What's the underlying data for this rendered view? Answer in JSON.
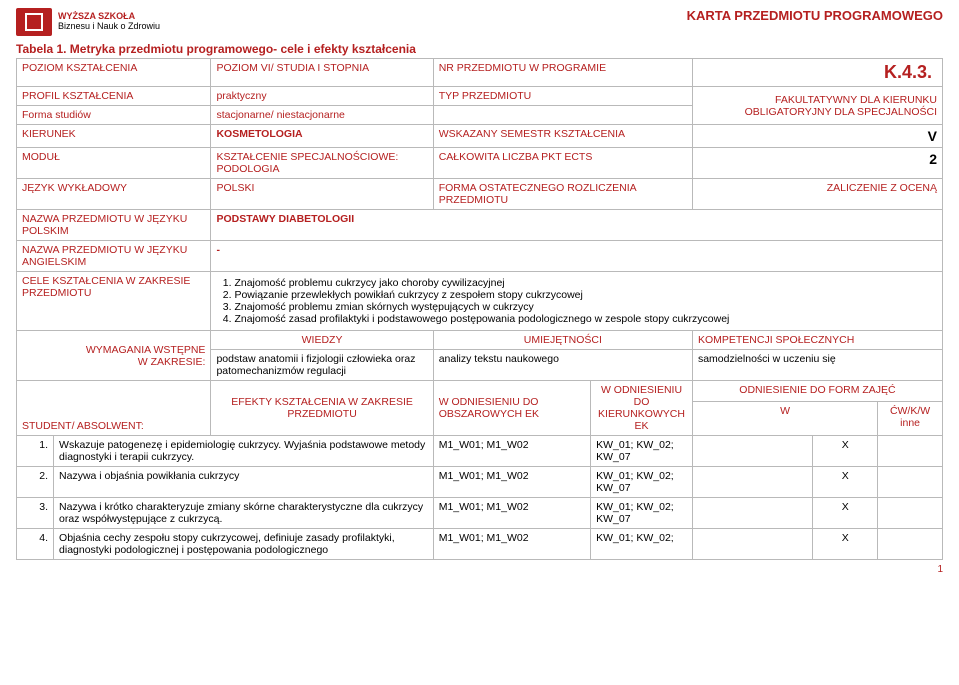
{
  "header": {
    "school_line1": "WYŻSZA SZKOŁA",
    "school_line2": "Biznesu i Nauk o Zdrowiu",
    "doc_title": "KARTA PRZEDMIOTU PROGRAMOWEGO"
  },
  "title": "Tabela 1. Metryka przedmiotu programowego- cele i efekty kształcenia",
  "rows": {
    "poziom_l": "POZIOM KSZTAŁCENIA",
    "poziom_v": "POZIOM VI/ STUDIA I STOPNIA",
    "nr_l": "NR PRZEDMIOTU W PROGRAMIE",
    "nr_v": "K.4.3.",
    "profil_l": "PROFIL KSZTAŁCENIA",
    "profil_v": "praktyczny",
    "typ_l": "TYP PRZEDMIOTU",
    "typ_v1": "FAKULTATYWNY DLA KIERUNKU",
    "typ_v2": "OBLIGATORYJNY DLA SPECJALNOŚCI",
    "forma_l": "Forma studiów",
    "forma_v": "stacjonarne/ niestacjonarne",
    "kier_l": "KIERUNEK",
    "kier_v": "KOSMETOLOGIA",
    "sem_l": "WSKAZANY SEMESTR KSZTAŁCENIA",
    "sem_v": "V",
    "modul_l": "MODUŁ",
    "modul_v": "KSZTAŁCENIE SPECJALNOŚCIOWE: PODOLOGIA",
    "ects_l": "CAŁKOWITA LICZBA PKT ECTS",
    "ects_v": "2",
    "jezyk_l": "JĘZYK WYKŁADOWY",
    "jezyk_v": "POLSKI",
    "forma_roz_l": "FORMA OSTATECZNEGO ROZLICZENIA PRZEDMIOTU",
    "forma_roz_v": "ZALICZENIE Z OCENĄ",
    "nazwa_pl_l": "NAZWA PRZEDMIOTU W JĘZYKU POLSKIM",
    "nazwa_pl_v": "PODSTAWY DIABETOLOGII",
    "nazwa_en_l": "NAZWA PRZEDMIOTU W JĘZYKU ANGIELSKIM",
    "nazwa_en_v": "-",
    "cele_l": "CELE KSZTAŁCENIA W ZAKRESIE PRZEDMIOTU",
    "cele": [
      "Znajomość problemu cukrzycy jako choroby cywilizacyjnej",
      "Powiązanie przewlekłych powikłań cukrzycy z zespołem stopy cukrzycowej",
      "Znajomość problemu zmian skórnych występujących w cukrzycy",
      "Znajomość zasad profilaktyki i podstawowego postępowania podologicznego w zespole stopy cukrzycowej"
    ],
    "wymagania_l1": "WYMAGANIA WSTĘPNE",
    "wymagania_l2": "W ZAKRESIE:",
    "wiedzy_h": "WIEDZY",
    "wiedzy_v": "podstaw anatomii i fizjologii człowieka oraz patomechanizmów regulacji",
    "umiej_h": "UMIEJĘTNOŚCI",
    "umiej_v": "analizy tekstu naukowego",
    "komp_h": "KOMPETENCJI  SPOŁECZNYCH",
    "komp_v": "samodzielności w uczeniu się",
    "student_l": "STUDENT/ ABSOLWENT:",
    "efekty_h": "EFEKTY KSZTAŁCENIA W ZAKRESIE PRZEDMIOTU",
    "obszar_h": "W ODNIESIENIU DO OBSZAROWYCH EK",
    "kierunk_h": "W ODNIESIENIU DO KIERUNKOWYCH EK",
    "formy_h": "ODNIESIENIE DO FORM ZAJĘĆ",
    "col_w": "W",
    "col_cw": "ĆW/K/W  inne"
  },
  "effects": [
    {
      "n": "1.",
      "text": "Wskazuje patogenezę i epidemiologię cukrzycy. Wyjaśnia podstawowe metody diagnostyki i terapii cukrzycy.",
      "obszar": "M1_W01; M1_W02",
      "kier": "KW_01; KW_02; KW_07",
      "w": "X",
      "cw": ""
    },
    {
      "n": "2.",
      "text": "Nazywa i objaśnia powikłania cukrzycy",
      "obszar": "M1_W01; M1_W02",
      "kier": "KW_01; KW_02; KW_07",
      "w": "X",
      "cw": ""
    },
    {
      "n": "3.",
      "text": "Nazywa i krótko charakteryzuje zmiany skórne charakterystyczne dla cukrzycy oraz współwystępujące z cukrzycą.",
      "obszar": "M1_W01; M1_W02",
      "kier": "KW_01; KW_02; KW_07",
      "w": "X",
      "cw": ""
    },
    {
      "n": "4.",
      "text": "Objaśnia cechy zespołu stopy cukrzycowej, definiuje zasady profilaktyki, diagnostyki podologicznej i postępowania podologicznego",
      "obszar": "M1_W01; M1_W02",
      "kier": "KW_01; KW_02;",
      "w": "X",
      "cw": ""
    }
  ],
  "page_number": "1"
}
